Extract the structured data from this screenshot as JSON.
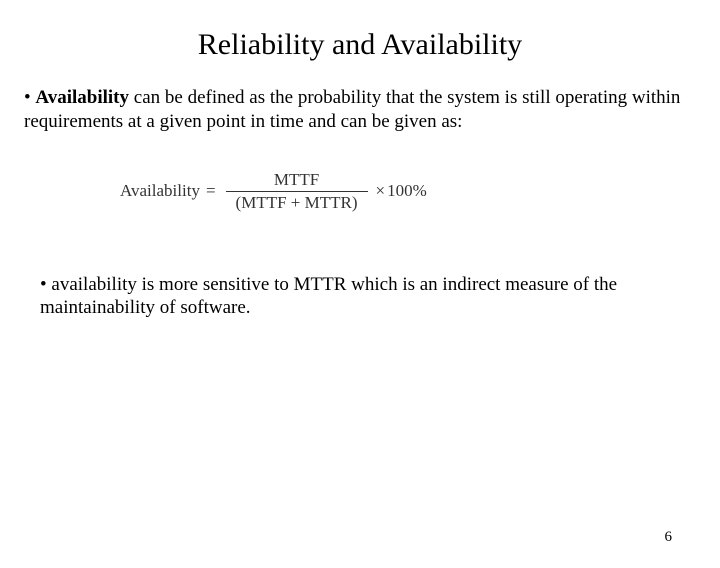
{
  "title": "Reliability and Availability",
  "para1_bullet": "•",
  "para1_bold": "Availability",
  "para1_rest": " can be defined as the probability that the system is still operating within requirements at a given point in time and can be given as:",
  "formula": {
    "label": "Availability",
    "eq": "=",
    "numerator": "MTTF",
    "denominator": "(MTTF + MTTR)",
    "times": "×",
    "suffix": "100%"
  },
  "para2_bullet": "•",
  "para2_text": " availability is more sensitive to MTTR which is an indirect measure of the maintainability of software.",
  "page_number": "6",
  "colors": {
    "background": "#ffffff",
    "text": "#000000",
    "formula_text": "#333333"
  },
  "fonts": {
    "title_size_pt": 30,
    "body_size_pt": 19,
    "formula_size_pt": 17,
    "family": "Times New Roman"
  }
}
